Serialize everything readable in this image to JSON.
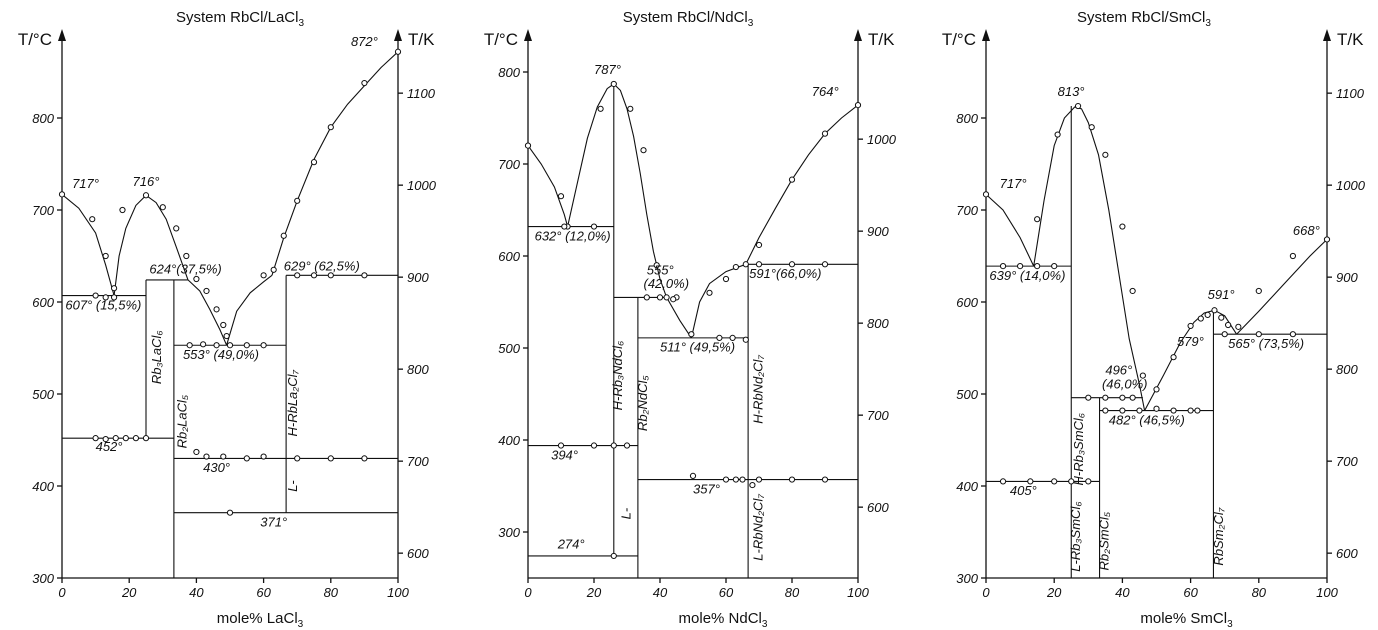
{
  "chart_data": [
    {
      "type": "line",
      "title": "System RbCl/LaCl",
      "title_sub": "3",
      "xlabel": "mole% LaCl",
      "xlabel_sub": "3",
      "ylabel_left": "T/°C",
      "ylabel_right": "T/K",
      "xlim": [
        0,
        100
      ],
      "ylim": [
        300,
        880
      ],
      "x_ticks": [
        0,
        20,
        40,
        60,
        80,
        100
      ],
      "y_ticks_c": [
        300,
        400,
        500,
        600,
        700,
        800
      ],
      "y_ticks_k": [
        600,
        700,
        800,
        900,
        1000,
        1100
      ],
      "liquidus": [
        {
          "x": [
            0,
            5,
            10,
            13,
            15.5
          ],
          "y": [
            717,
            702,
            675,
            640,
            607
          ]
        },
        {
          "x": [
            15.5,
            17,
            19,
            22,
            25,
            28,
            31,
            34,
            37.5
          ],
          "y": [
            607,
            650,
            680,
            705,
            716,
            708,
            690,
            660,
            624
          ]
        },
        {
          "x": [
            37.5,
            41,
            44,
            47,
            49
          ],
          "y": [
            624,
            612,
            592,
            570,
            553
          ]
        },
        {
          "x": [
            49,
            52,
            56,
            60,
            62.5
          ],
          "y": [
            553,
            590,
            610,
            622,
            629
          ]
        },
        {
          "x": [
            62.5,
            66,
            70,
            75,
            80,
            85,
            90,
            95,
            100
          ],
          "y": [
            629,
            670,
            710,
            755,
            790,
            815,
            835,
            855,
            872
          ]
        }
      ],
      "horizontals": [
        {
          "x1": 0,
          "x2": 25,
          "y": 607
        },
        {
          "x1": 25,
          "x2": 37.5,
          "y": 624
        },
        {
          "x1": 33.3,
          "x2": 66.7,
          "y": 553
        },
        {
          "x1": 66.7,
          "x2": 100,
          "y": 629
        },
        {
          "x1": 0,
          "x2": 33.3,
          "y": 452
        },
        {
          "x1": 33.3,
          "x2": 100,
          "y": 430
        },
        {
          "x1": 33.3,
          "x2": 100,
          "y": 371
        }
      ],
      "verticals": [
        {
          "x": 25,
          "y1": 452,
          "y2": 624
        },
        {
          "x": 33.3,
          "y1": 300,
          "y2": 624
        },
        {
          "x": 66.7,
          "y1": 371,
          "y2": 629
        }
      ],
      "points": [
        [
          0,
          717
        ],
        [
          9,
          690
        ],
        [
          13,
          650
        ],
        [
          15.5,
          615
        ],
        [
          10,
          607
        ],
        [
          13,
          605
        ],
        [
          15.5,
          605
        ],
        [
          18,
          700
        ],
        [
          25,
          716
        ],
        [
          30,
          703
        ],
        [
          34,
          680
        ],
        [
          37,
          650
        ],
        [
          40,
          625
        ],
        [
          43,
          612
        ],
        [
          46,
          592
        ],
        [
          48,
          575
        ],
        [
          49,
          563
        ],
        [
          38,
          553
        ],
        [
          42,
          554
        ],
        [
          46,
          553
        ],
        [
          50,
          553
        ],
        [
          55,
          553
        ],
        [
          60,
          553
        ],
        [
          63,
          635
        ],
        [
          66,
          672
        ],
        [
          70,
          710
        ],
        [
          75,
          752
        ],
        [
          80,
          790
        ],
        [
          90,
          838
        ],
        [
          100,
          872
        ],
        [
          60,
          629
        ],
        [
          70,
          629
        ],
        [
          75,
          629
        ],
        [
          80,
          629
        ],
        [
          90,
          629
        ],
        [
          10,
          452
        ],
        [
          13,
          451
        ],
        [
          16,
          452
        ],
        [
          19,
          452
        ],
        [
          22,
          452
        ],
        [
          25,
          452
        ],
        [
          40,
          437
        ],
        [
          43,
          432
        ],
        [
          48,
          432
        ],
        [
          55,
          430
        ],
        [
          60,
          432
        ],
        [
          70,
          430
        ],
        [
          80,
          430
        ],
        [
          90,
          430
        ],
        [
          50,
          371
        ]
      ],
      "annotations": [
        {
          "text": "717°",
          "x": 3,
          "y": 724
        },
        {
          "text": "716°",
          "x": 21,
          "y": 726
        },
        {
          "text": "872°",
          "x": 86,
          "y": 878
        },
        {
          "text": "624°",
          "x": 26,
          "y": 631
        },
        {
          "text": "(37,5%)",
          "x": 34,
          "y": 631
        },
        {
          "text": "629° (62,5%)",
          "x": 66,
          "y": 634
        },
        {
          "text": "607° (15,5%)",
          "x": 1,
          "y": 592
        },
        {
          "text": "553° (49,0%)",
          "x": 36,
          "y": 538
        },
        {
          "text": "452°",
          "x": 10,
          "y": 438
        },
        {
          "text": "430°",
          "x": 42,
          "y": 415
        },
        {
          "text": "371°",
          "x": 59,
          "y": 356
        }
      ],
      "phases": [
        {
          "text": "Rb₃LaCl₆",
          "x": 29.5,
          "y": 540
        },
        {
          "text": "Rb₂LaCl₅",
          "x": 37,
          "y": 470
        },
        {
          "text": "H-RbLa₂Cl₇",
          "x": 70,
          "y": 490
        },
        {
          "text": "L-",
          "x": 70,
          "y": 400
        }
      ]
    },
    {
      "type": "line",
      "title": "System RbCl/NdCl",
      "title_sub": "3",
      "xlabel": "mole% NdCl",
      "xlabel_sub": "3",
      "ylabel_left": "T/°C",
      "ylabel_right": "T/K",
      "xlim": [
        0,
        100
      ],
      "ylim": [
        250,
        840
      ],
      "x_ticks": [
        0,
        20,
        40,
        60,
        80,
        100
      ],
      "y_ticks_c": [
        300,
        400,
        500,
        600,
        700,
        800
      ],
      "y_ticks_k": [
        600,
        700,
        800,
        900,
        1000
      ],
      "liquidus": [
        {
          "x": [
            0,
            4,
            8,
            11,
            12
          ],
          "y": [
            720,
            700,
            675,
            645,
            632
          ]
        },
        {
          "x": [
            12,
            15,
            18,
            21,
            24,
            26,
            28,
            30,
            32,
            34,
            36,
            38,
            40,
            42
          ],
          "y": [
            632,
            680,
            728,
            762,
            782,
            787,
            780,
            760,
            730,
            690,
            645,
            605,
            575,
            555
          ]
        },
        {
          "x": [
            42,
            46,
            49.5
          ],
          "y": [
            555,
            530,
            511
          ]
        },
        {
          "x": [
            49.5,
            52,
            55,
            60,
            66
          ],
          "y": [
            511,
            550,
            570,
            583,
            591
          ]
        },
        {
          "x": [
            66,
            70,
            75,
            80,
            85,
            90,
            95,
            100
          ],
          "y": [
            591,
            620,
            652,
            683,
            710,
            733,
            750,
            764
          ]
        }
      ],
      "horizontals": [
        {
          "x1": 0,
          "x2": 26,
          "y": 632
        },
        {
          "x1": 26,
          "x2": 42,
          "y": 555
        },
        {
          "x1": 33.3,
          "x2": 66.7,
          "y": 511
        },
        {
          "x1": 66.7,
          "x2": 100,
          "y": 591
        },
        {
          "x1": 0,
          "x2": 33.3,
          "y": 394
        },
        {
          "x1": 33.3,
          "x2": 100,
          "y": 357
        },
        {
          "x1": 0,
          "x2": 33.3,
          "y": 274
        }
      ],
      "verticals": [
        {
          "x": 26,
          "y1": 274,
          "y2": 787
        },
        {
          "x": 33.3,
          "y1": 250,
          "y2": 555
        },
        {
          "x": 66.7,
          "y1": 250,
          "y2": 591
        }
      ],
      "points": [
        [
          0,
          720
        ],
        [
          10,
          665
        ],
        [
          12,
          632
        ],
        [
          22,
          760
        ],
        [
          26,
          787
        ],
        [
          31,
          760
        ],
        [
          35,
          715
        ],
        [
          39,
          590
        ],
        [
          45,
          555
        ],
        [
          49.5,
          515
        ],
        [
          55,
          560
        ],
        [
          60,
          575
        ],
        [
          63,
          588
        ],
        [
          66,
          591
        ],
        [
          70,
          612
        ],
        [
          80,
          683
        ],
        [
          90,
          733
        ],
        [
          100,
          764
        ],
        [
          11,
          632
        ],
        [
          20,
          632
        ],
        [
          36,
          555
        ],
        [
          40,
          555
        ],
        [
          42,
          555
        ],
        [
          44,
          553
        ],
        [
          58,
          511
        ],
        [
          62,
          511
        ],
        [
          66,
          509
        ],
        [
          10,
          394
        ],
        [
          20,
          394
        ],
        [
          26,
          394
        ],
        [
          30,
          394
        ],
        [
          50,
          361
        ],
        [
          60,
          357
        ],
        [
          63,
          357
        ],
        [
          65,
          357
        ],
        [
          70,
          357
        ],
        [
          80,
          357
        ],
        [
          90,
          357
        ],
        [
          68,
          351
        ],
        [
          70,
          591
        ],
        [
          80,
          591
        ],
        [
          90,
          591
        ],
        [
          26,
          274
        ]
      ],
      "annotations": [
        {
          "text": "787°",
          "x": 20,
          "y": 798
        },
        {
          "text": "764°",
          "x": 86,
          "y": 774
        },
        {
          "text": "632° (12,0%)",
          "x": 2,
          "y": 617
        },
        {
          "text": "555°",
          "x": 36,
          "y": 580
        },
        {
          "text": "(42,0%)",
          "x": 35,
          "y": 565
        },
        {
          "text": "591°(66,0%)",
          "x": 67,
          "y": 576
        },
        {
          "text": "511° (49,5%)",
          "x": 40,
          "y": 496
        },
        {
          "text": "394°",
          "x": 7,
          "y": 379
        },
        {
          "text": "357°",
          "x": 50,
          "y": 342
        },
        {
          "text": "274°",
          "x": 9,
          "y": 282
        }
      ],
      "phases": [
        {
          "text": "H-Rb₃NdCl₆",
          "x": 28.5,
          "y": 470
        },
        {
          "text": "Rb₂NdCl₅",
          "x": 36,
          "y": 440
        },
        {
          "text": "H-RbNd₂Cl₇",
          "x": 71,
          "y": 455
        },
        {
          "text": "L-RbNd₂Cl₇",
          "x": 71,
          "y": 305
        },
        {
          "text": "L-",
          "x": 31,
          "y": 320
        }
      ]
    },
    {
      "type": "line",
      "title": "System RbCl/SmCl",
      "title_sub": "3",
      "xlabel": "mole% SmCl",
      "xlabel_sub": "3",
      "ylabel_left": "T/°C",
      "ylabel_right": "T/K",
      "xlim": [
        0,
        100
      ],
      "ylim": [
        300,
        880
      ],
      "x_ticks": [
        0,
        20,
        40,
        60,
        80,
        100
      ],
      "y_ticks_c": [
        300,
        400,
        500,
        600,
        700,
        800
      ],
      "y_ticks_k": [
        600,
        700,
        800,
        900,
        1000,
        1100
      ],
      "liquidus": [
        {
          "x": [
            0,
            5,
            10,
            14
          ],
          "y": [
            717,
            700,
            670,
            639
          ]
        },
        {
          "x": [
            14,
            17,
            20,
            23,
            26,
            28,
            30,
            33,
            36,
            39,
            42,
            45,
            46.5
          ],
          "y": [
            639,
            710,
            770,
            800,
            812,
            810,
            795,
            760,
            700,
            630,
            560,
            510,
            482
          ]
        },
        {
          "x": [
            46.5,
            52,
            57,
            61,
            64,
            67
          ],
          "y": [
            482,
            520,
            556,
            578,
            588,
            591
          ]
        },
        {
          "x": [
            67,
            70,
            73.5
          ],
          "y": [
            591,
            585,
            565
          ]
        },
        {
          "x": [
            73.5,
            80,
            88,
            95,
            100
          ],
          "y": [
            565,
            590,
            622,
            650,
            668
          ]
        }
      ],
      "horizontals": [
        {
          "x1": 0,
          "x2": 25,
          "y": 639
        },
        {
          "x1": 25,
          "x2": 46,
          "y": 496
        },
        {
          "x1": 33.3,
          "x2": 66.7,
          "y": 482
        },
        {
          "x1": 66.7,
          "x2": 100,
          "y": 565
        },
        {
          "x1": 0,
          "x2": 33.3,
          "y": 405
        }
      ],
      "verticals": [
        {
          "x": 25,
          "y1": 300,
          "y2": 813
        },
        {
          "x": 33.3,
          "y1": 300,
          "y2": 496
        },
        {
          "x": 66.7,
          "y1": 300,
          "y2": 591
        }
      ],
      "points": [
        [
          0,
          717
        ],
        [
          15,
          690
        ],
        [
          15,
          639
        ],
        [
          21,
          782
        ],
        [
          27,
          813
        ],
        [
          31,
          790
        ],
        [
          35,
          760
        ],
        [
          40,
          682
        ],
        [
          43,
          612
        ],
        [
          46,
          520
        ],
        [
          50,
          505
        ],
        [
          55,
          540
        ],
        [
          60,
          574
        ],
        [
          63,
          582
        ],
        [
          65,
          586
        ],
        [
          67,
          591
        ],
        [
          69,
          583
        ],
        [
          71,
          575
        ],
        [
          74,
          573
        ],
        [
          80,
          612
        ],
        [
          90,
          650
        ],
        [
          100,
          668
        ],
        [
          5,
          639
        ],
        [
          10,
          639
        ],
        [
          20,
          639
        ],
        [
          30,
          496
        ],
        [
          35,
          496
        ],
        [
          40,
          496
        ],
        [
          43,
          496
        ],
        [
          35,
          482
        ],
        [
          40,
          482
        ],
        [
          45,
          482
        ],
        [
          50,
          484
        ],
        [
          55,
          482
        ],
        [
          60,
          482
        ],
        [
          62,
          482
        ],
        [
          70,
          565
        ],
        [
          80,
          565
        ],
        [
          90,
          565
        ],
        [
          5,
          405
        ],
        [
          13,
          405
        ],
        [
          20,
          405
        ],
        [
          25,
          405
        ],
        [
          30,
          405
        ]
      ],
      "annotations": [
        {
          "text": "717°",
          "x": 4,
          "y": 724
        },
        {
          "text": "813°",
          "x": 21,
          "y": 824
        },
        {
          "text": "668°",
          "x": 90,
          "y": 673
        },
        {
          "text": "639° (14,0%)",
          "x": 1,
          "y": 624
        },
        {
          "text": "591°",
          "x": 65,
          "y": 603
        },
        {
          "text": "579°",
          "x": 56,
          "y": 552
        },
        {
          "text": "565° (73,5%)",
          "x": 71,
          "y": 550
        },
        {
          "text": "496°",
          "x": 35,
          "y": 521
        },
        {
          "text": "(46,0%)",
          "x": 34,
          "y": 506
        },
        {
          "text": "482° (46,5%)",
          "x": 36,
          "y": 467
        },
        {
          "text": "405°",
          "x": 7,
          "y": 390
        }
      ],
      "phases": [
        {
          "text": "H-Rb₃SmCl₆",
          "x": 28.5,
          "y": 440
        },
        {
          "text": "L-Rb₃SmCl₆",
          "x": 27.5,
          "y": 345
        },
        {
          "text": "Rb₂SmCl₅",
          "x": 36,
          "y": 340
        },
        {
          "text": "RbSm₂Cl₇",
          "x": 69.5,
          "y": 345
        }
      ]
    }
  ]
}
